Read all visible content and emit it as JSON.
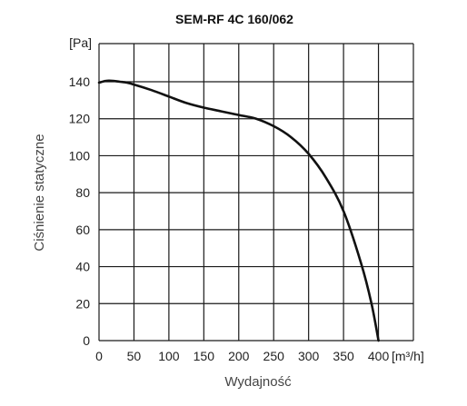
{
  "chart_data": {
    "type": "line",
    "title": "SEM-RF 4C 160/062",
    "xlabel": "Wydajność",
    "ylabel": "Ciśnienie statyczne",
    "x_unit": "[m³/h]",
    "y_unit": "[Pa]",
    "xlim": [
      0,
      450
    ],
    "ylim": [
      0,
      140
    ],
    "x_ticks": [
      0,
      50,
      100,
      150,
      200,
      250,
      300,
      350,
      400
    ],
    "y_ticks": [
      0,
      20,
      40,
      60,
      80,
      100,
      120,
      140
    ],
    "grid": true,
    "series": [
      {
        "x": [
          0,
          10,
          20,
          30,
          40,
          50,
          75,
          100,
          125,
          150,
          175,
          200,
          225,
          250,
          275,
          300,
          325,
          350,
          375,
          390,
          400
        ],
        "values": [
          139.5,
          140.5,
          140.5,
          140,
          139.5,
          138.5,
          135.5,
          132,
          128.5,
          126,
          124,
          122,
          120,
          116,
          110,
          101,
          88,
          70,
          42,
          20,
          0
        ]
      }
    ]
  }
}
